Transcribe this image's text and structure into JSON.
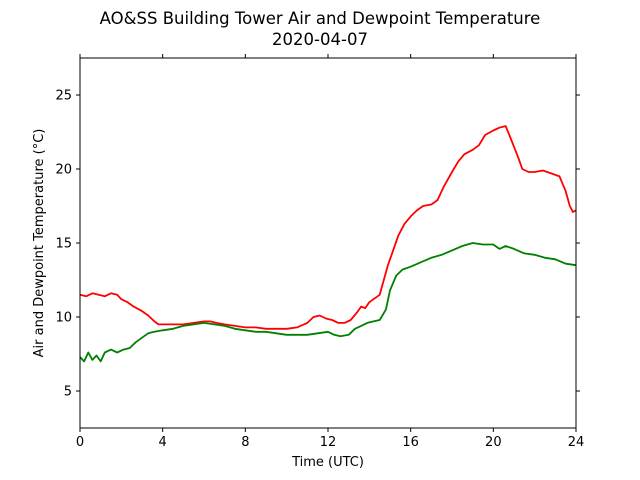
{
  "chart_data": {
    "type": "line",
    "title": "AO&SS Building Tower Air and Dewpoint Temperature",
    "subtitle": "2020-04-07",
    "xlabel": "Time (UTC)",
    "ylabel": "Air and Dewpoint Temperature (°C)",
    "xlim": [
      0,
      24
    ],
    "ylim": [
      2.5,
      27.5
    ],
    "xticks": [
      0,
      4,
      8,
      12,
      16,
      20,
      24
    ],
    "yticks": [
      5,
      10,
      15,
      20,
      25
    ],
    "grid": false,
    "series": [
      {
        "color": "#ff0000",
        "x": [
          0,
          0.3,
          0.6,
          0.9,
          1.2,
          1.5,
          1.8,
          2.0,
          2.3,
          2.6,
          3.0,
          3.3,
          3.6,
          3.8,
          4.0,
          4.5,
          5.0,
          5.5,
          6.0,
          6.3,
          6.6,
          7.0,
          7.5,
          8.0,
          8.5,
          9.0,
          9.5,
          10.0,
          10.5,
          11.0,
          11.3,
          11.6,
          11.9,
          12.2,
          12.5,
          12.8,
          13.1,
          13.4,
          13.6,
          13.8,
          14.0,
          14.3,
          14.5,
          14.7,
          14.9,
          15.1,
          15.4,
          15.7,
          16.0,
          16.3,
          16.6,
          17.0,
          17.3,
          17.6,
          18.0,
          18.3,
          18.6,
          19.0,
          19.3,
          19.6,
          20.0,
          20.3,
          20.6,
          20.8,
          21.0,
          21.2,
          21.4,
          21.7,
          22.0,
          22.4,
          22.8,
          23.2,
          23.5,
          23.7,
          23.85,
          24.0
        ],
        "y": [
          11.5,
          11.4,
          11.6,
          11.5,
          11.4,
          11.6,
          11.5,
          11.2,
          11.0,
          10.7,
          10.4,
          10.1,
          9.7,
          9.5,
          9.5,
          9.5,
          9.5,
          9.6,
          9.7,
          9.7,
          9.6,
          9.5,
          9.4,
          9.3,
          9.3,
          9.2,
          9.2,
          9.2,
          9.3,
          9.6,
          10.0,
          10.1,
          9.9,
          9.8,
          9.6,
          9.6,
          9.8,
          10.3,
          10.7,
          10.6,
          11.0,
          11.3,
          11.5,
          12.5,
          13.5,
          14.3,
          15.5,
          16.3,
          16.8,
          17.2,
          17.5,
          17.6,
          17.9,
          18.8,
          19.8,
          20.5,
          21.0,
          21.3,
          21.6,
          22.3,
          22.6,
          22.8,
          22.9,
          22.2,
          21.5,
          20.8,
          20.0,
          19.8,
          19.8,
          19.9,
          19.7,
          19.5,
          18.5,
          17.5,
          17.1,
          17.2
        ]
      },
      {
        "color": "#008000",
        "x": [
          0,
          0.2,
          0.4,
          0.6,
          0.8,
          1.0,
          1.2,
          1.5,
          1.8,
          2.1,
          2.4,
          2.7,
          3.0,
          3.3,
          3.6,
          4.0,
          4.5,
          5.0,
          5.5,
          6.0,
          6.5,
          7.0,
          7.5,
          8.0,
          8.5,
          9.0,
          9.5,
          10.0,
          10.5,
          11.0,
          11.5,
          12.0,
          12.3,
          12.6,
          13.0,
          13.3,
          13.6,
          13.9,
          14.2,
          14.5,
          14.8,
          15.0,
          15.3,
          15.6,
          16.0,
          16.5,
          17.0,
          17.5,
          18.0,
          18.5,
          19.0,
          19.5,
          20.0,
          20.3,
          20.6,
          21.0,
          21.5,
          22.0,
          22.5,
          23.0,
          23.5,
          24.0
        ],
        "y": [
          7.3,
          7.0,
          7.6,
          7.1,
          7.4,
          7.0,
          7.6,
          7.8,
          7.6,
          7.8,
          7.9,
          8.3,
          8.6,
          8.9,
          9.0,
          9.1,
          9.2,
          9.4,
          9.5,
          9.6,
          9.5,
          9.4,
          9.2,
          9.1,
          9.0,
          9.0,
          8.9,
          8.8,
          8.8,
          8.8,
          8.9,
          9.0,
          8.8,
          8.7,
          8.8,
          9.2,
          9.4,
          9.6,
          9.7,
          9.8,
          10.5,
          11.8,
          12.8,
          13.2,
          13.4,
          13.7,
          14.0,
          14.2,
          14.5,
          14.8,
          15.0,
          14.9,
          14.9,
          14.6,
          14.8,
          14.6,
          14.3,
          14.2,
          14.0,
          13.9,
          13.6,
          13.5
        ]
      }
    ]
  }
}
